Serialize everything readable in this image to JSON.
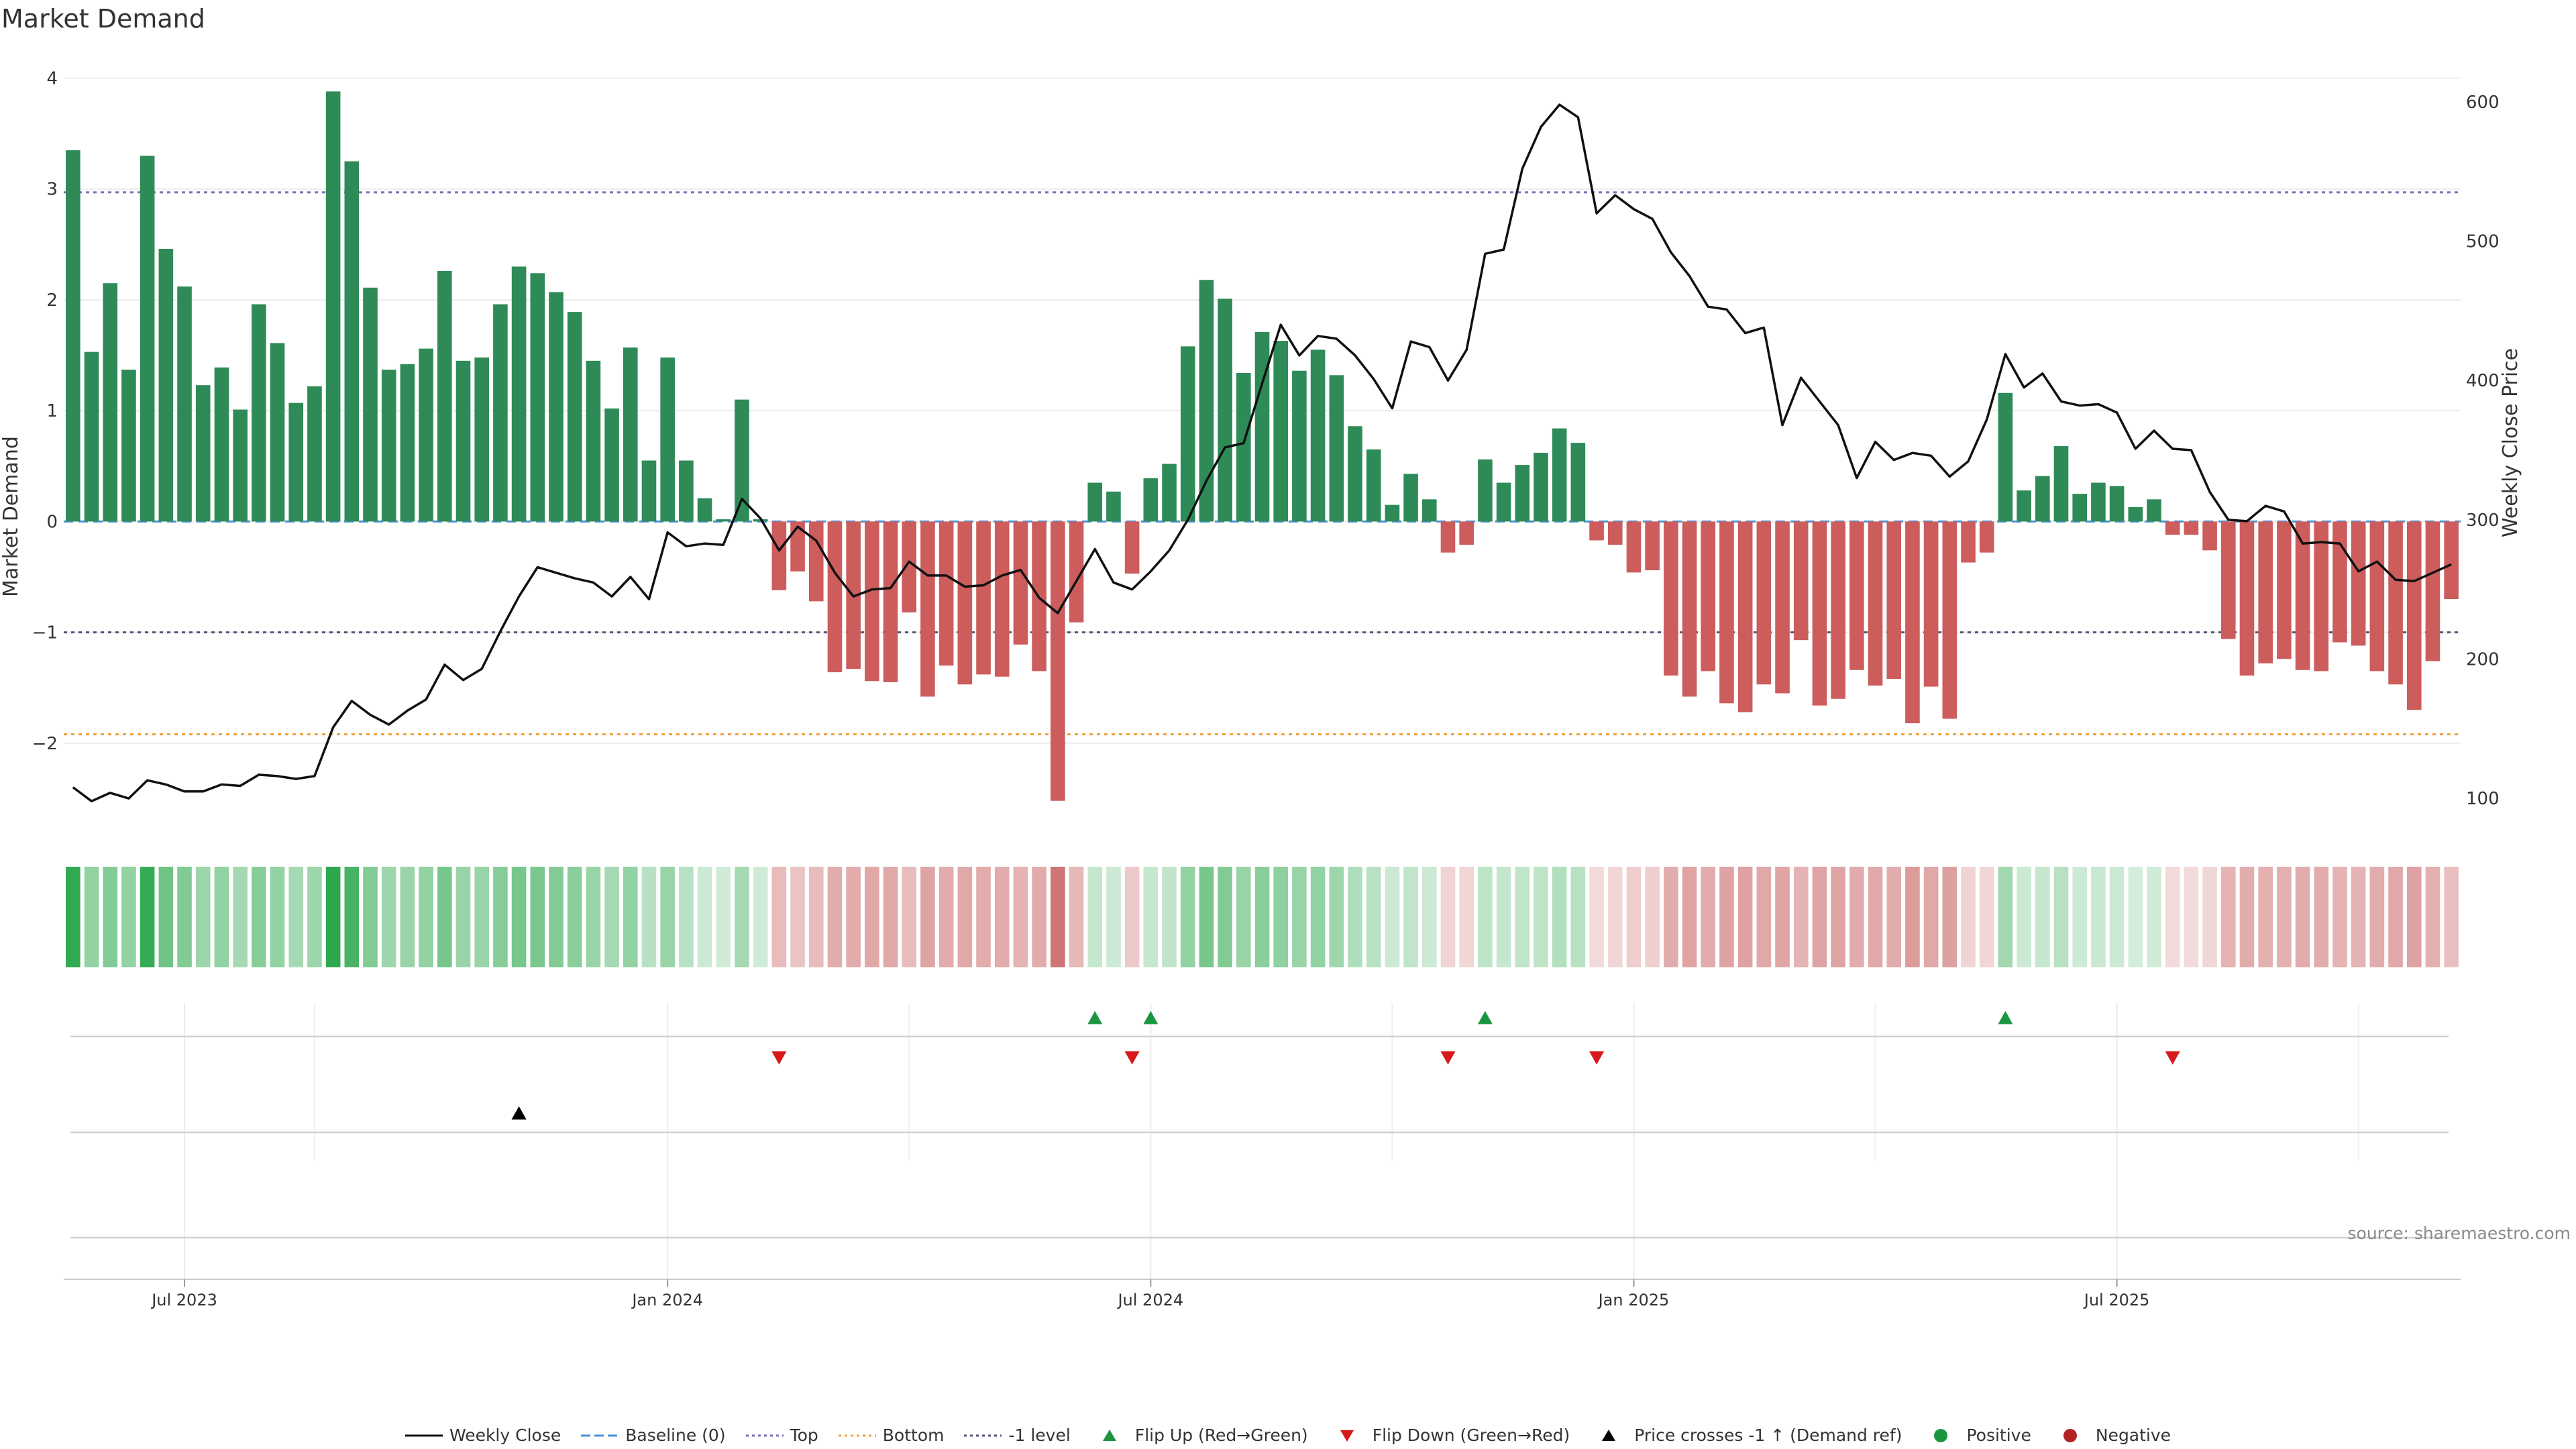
{
  "title": "Market Demand",
  "source": "source: sharemaestro.com",
  "colors": {
    "positive": "#2e8b57",
    "negative": "#cd5c5c",
    "line": "#111111",
    "top": "#7b6fb8",
    "bottom": "#f0a040",
    "minus1": "#555577",
    "baseline": "#4a90d9",
    "flip_up": "#1a9641",
    "flip_down": "#d7191c",
    "cross": "#000000"
  },
  "legend": [
    {
      "label": "Weekly Close",
      "kind": "line",
      "color": "#111111"
    },
    {
      "label": "Baseline (0)",
      "kind": "dash",
      "color": "#4a90d9"
    },
    {
      "label": "Top",
      "kind": "dot",
      "color": "#7b6fb8"
    },
    {
      "label": "Bottom",
      "kind": "dot",
      "color": "#f0a040"
    },
    {
      "label": "-1 level",
      "kind": "dot",
      "color": "#555577"
    },
    {
      "label": "Flip Up (Red→Green)",
      "kind": "tri-up",
      "color": "#1a9641"
    },
    {
      "label": "Flip Down (Green→Red)",
      "kind": "tri-down",
      "color": "#d7191c"
    },
    {
      "label": "Price crosses -1 ↑ (Demand ref)",
      "kind": "tri-up",
      "color": "#000000"
    },
    {
      "label": "Positive",
      "kind": "circle",
      "color": "#1a9641"
    },
    {
      "label": "Negative",
      "kind": "circle",
      "color": "#b22222"
    }
  ],
  "chart_data": {
    "type": "bar",
    "title": "Market Demand",
    "xlabel": "",
    "ylabel": "Market Demand",
    "y2label": "Weekly Close Price",
    "ylim": [
      -2.8,
      4.1
    ],
    "y2lim": [
      76,
      625
    ],
    "yticks": [
      4,
      3,
      2,
      1,
      0,
      -1,
      -2
    ],
    "y2ticks": [
      600,
      500,
      400,
      300,
      200,
      100
    ],
    "reference_lines": {
      "top": 2.97,
      "bottom": -1.92,
      "minus1": -1.0,
      "baseline": 0
    },
    "x_start_index": 0,
    "x_ticks": [
      {
        "label": "Jul 2023",
        "index": 6
      },
      {
        "label": "Jan 2024",
        "index": 32
      },
      {
        "label": "Jul 2024",
        "index": 58
      },
      {
        "label": "Jan 2025",
        "index": 84
      },
      {
        "label": "Jul 2025",
        "index": 110
      }
    ],
    "demand": [
      3.35,
      1.53,
      2.15,
      1.37,
      3.3,
      2.46,
      2.12,
      1.23,
      1.39,
      1.01,
      1.96,
      1.61,
      1.07,
      1.22,
      3.88,
      3.25,
      2.11,
      1.37,
      1.42,
      1.56,
      2.26,
      1.45,
      1.48,
      1.96,
      2.3,
      2.24,
      2.07,
      1.89,
      1.45,
      1.02,
      1.57,
      0.55,
      1.48,
      0.55,
      0.21,
      0.02,
      1.1,
      0.02,
      -0.62,
      -0.45,
      -0.72,
      -1.36,
      -1.33,
      -1.44,
      -1.45,
      -0.82,
      -1.58,
      -1.3,
      -1.47,
      -1.38,
      -1.4,
      -1.11,
      -1.35,
      -2.52,
      -0.91,
      0.35,
      0.27,
      -0.47,
      0.39,
      0.52,
      1.58,
      2.18,
      2.01,
      1.34,
      1.71,
      1.63,
      1.36,
      1.55,
      1.32,
      0.86,
      0.65,
      0.15,
      0.43,
      0.2,
      -0.28,
      -0.21,
      0.56,
      0.35,
      0.51,
      0.62,
      0.84,
      0.71,
      -0.17,
      -0.21,
      -0.46,
      -0.44,
      -1.39,
      -1.58,
      -1.35,
      -1.64,
      -1.72,
      -1.47,
      -1.55,
      -1.07,
      -1.66,
      -1.6,
      -1.34,
      -1.48,
      -1.42,
      -1.82,
      -1.49,
      -1.78,
      -0.37,
      -0.28,
      1.16,
      0.28,
      0.41,
      0.68,
      0.25,
      0.35,
      0.32,
      0.13,
      0.2,
      -0.12,
      -0.12,
      -0.26,
      -1.06,
      -1.39,
      -1.28,
      -1.24,
      -1.34,
      -1.35,
      -1.09,
      -1.12,
      -1.35,
      -1.47,
      -1.7,
      -1.26,
      -0.7
    ],
    "close": [
      108,
      98,
      104,
      100,
      113,
      110,
      105,
      105,
      110,
      109,
      117,
      116,
      114,
      116,
      151,
      170,
      160,
      153,
      163,
      171,
      196,
      185,
      193,
      220,
      245,
      266,
      262,
      258,
      255,
      245,
      259,
      243,
      291,
      281,
      283,
      282,
      315,
      301,
      278,
      295,
      285,
      262,
      245,
      250,
      251,
      270,
      260,
      260,
      252,
      253,
      260,
      264,
      244,
      233,
      256,
      279,
      255,
      250,
      263,
      278,
      300,
      328,
      352,
      355,
      398,
      440,
      418,
      432,
      430,
      418,
      401,
      380,
      428,
      424,
      400,
      422,
      491,
      494,
      552,
      582,
      598,
      589,
      520,
      533,
      523,
      516,
      492,
      475,
      453,
      451,
      434,
      438,
      368,
      402,
      385,
      368,
      330,
      356,
      343,
      348,
      346,
      331,
      342,
      372,
      419,
      395,
      405,
      385,
      382,
      383,
      377,
      351,
      364,
      351,
      350,
      320,
      300,
      299,
      310,
      306,
      283,
      284,
      283,
      263,
      270,
      257,
      256,
      262,
      268
    ],
    "intensity": [
      0.98,
      0.45,
      0.55,
      0.45,
      0.95,
      0.65,
      0.55,
      0.4,
      0.45,
      0.35,
      0.52,
      0.45,
      0.35,
      0.4,
      1.0,
      0.85,
      0.55,
      0.4,
      0.42,
      0.45,
      0.6,
      0.42,
      0.42,
      0.52,
      0.6,
      0.58,
      0.55,
      0.5,
      0.42,
      0.35,
      0.45,
      0.25,
      0.42,
      0.25,
      0.15,
      0.12,
      0.35,
      0.12,
      0.3,
      0.25,
      0.3,
      0.4,
      0.4,
      0.42,
      0.42,
      0.3,
      0.45,
      0.4,
      0.42,
      0.4,
      0.4,
      0.35,
      0.4,
      0.75,
      0.32,
      0.18,
      0.15,
      0.2,
      0.18,
      0.2,
      0.45,
      0.6,
      0.55,
      0.42,
      0.5,
      0.48,
      0.42,
      0.45,
      0.4,
      0.3,
      0.25,
      0.15,
      0.2,
      0.15,
      0.15,
      0.12,
      0.22,
      0.18,
      0.2,
      0.22,
      0.28,
      0.25,
      0.1,
      0.12,
      0.18,
      0.18,
      0.4,
      0.45,
      0.4,
      0.45,
      0.47,
      0.42,
      0.44,
      0.35,
      0.46,
      0.45,
      0.4,
      0.42,
      0.4,
      0.5,
      0.42,
      0.48,
      0.15,
      0.12,
      0.38,
      0.15,
      0.18,
      0.25,
      0.14,
      0.16,
      0.15,
      0.1,
      0.12,
      0.1,
      0.1,
      0.12,
      0.35,
      0.4,
      0.38,
      0.37,
      0.4,
      0.4,
      0.35,
      0.35,
      0.4,
      0.42,
      0.47,
      0.38,
      0.28
    ],
    "flip_up": [
      55,
      58,
      76,
      104
    ],
    "flip_down": [
      38,
      57,
      74,
      82,
      113
    ],
    "price_cross": [
      24
    ]
  }
}
